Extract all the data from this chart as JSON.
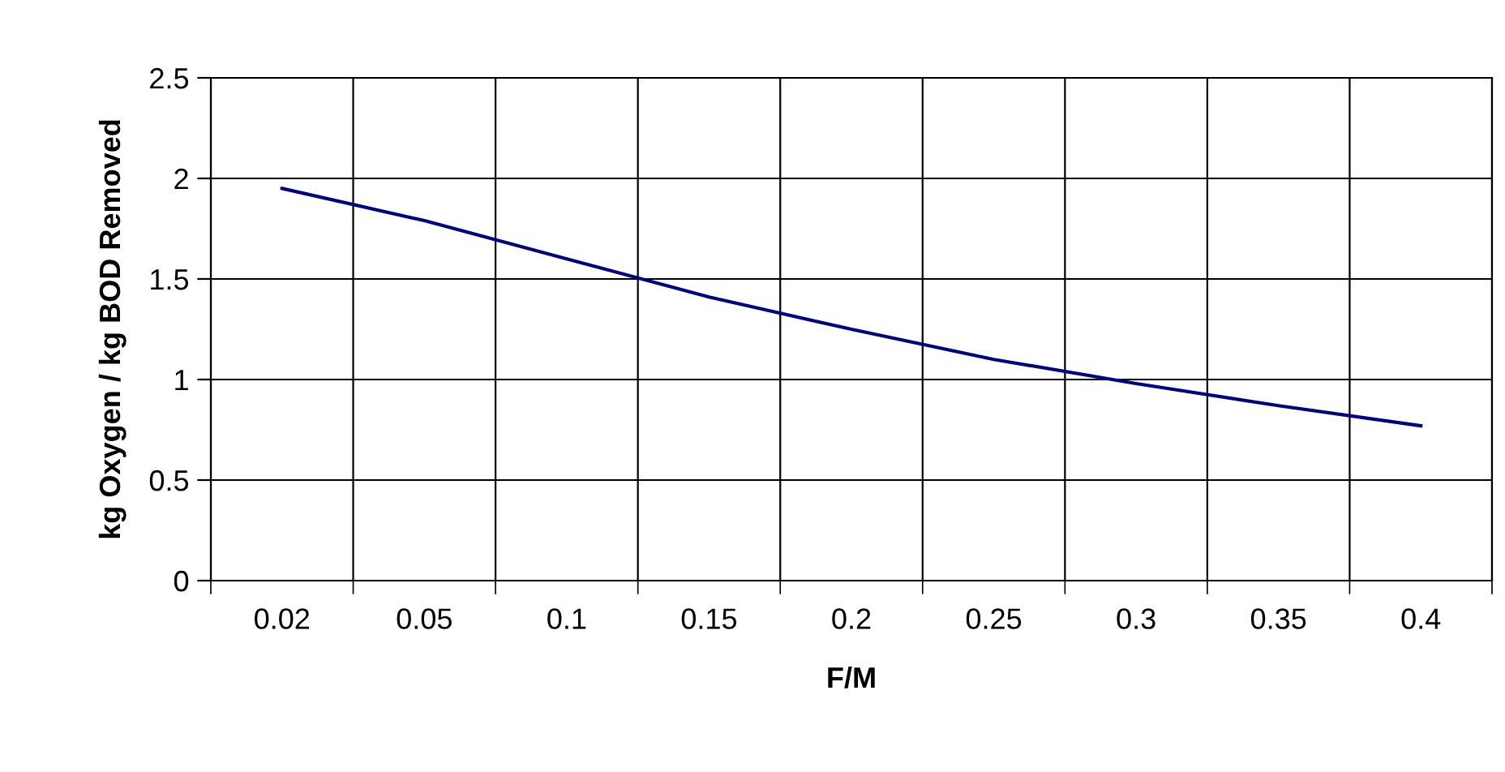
{
  "chart_data": {
    "type": "line",
    "xlabel": "F/M",
    "ylabel": "kg Oxygen / kg BOD Removed",
    "categories": [
      "0.02",
      "0.05",
      "0.1",
      "0.15",
      "0.2",
      "0.25",
      "0.3",
      "0.35",
      "0.4"
    ],
    "series": [
      {
        "color": "#000080",
        "values": [
          1.95,
          1.79,
          1.6,
          1.41,
          1.25,
          1.1,
          0.98,
          0.87,
          0.77
        ]
      }
    ],
    "ylim": [
      0,
      2.5
    ],
    "yticks": [
      0,
      0.5,
      1,
      1.5,
      2,
      2.5
    ],
    "grid": true,
    "legend": false,
    "marker": "none",
    "line_style": "solid"
  }
}
